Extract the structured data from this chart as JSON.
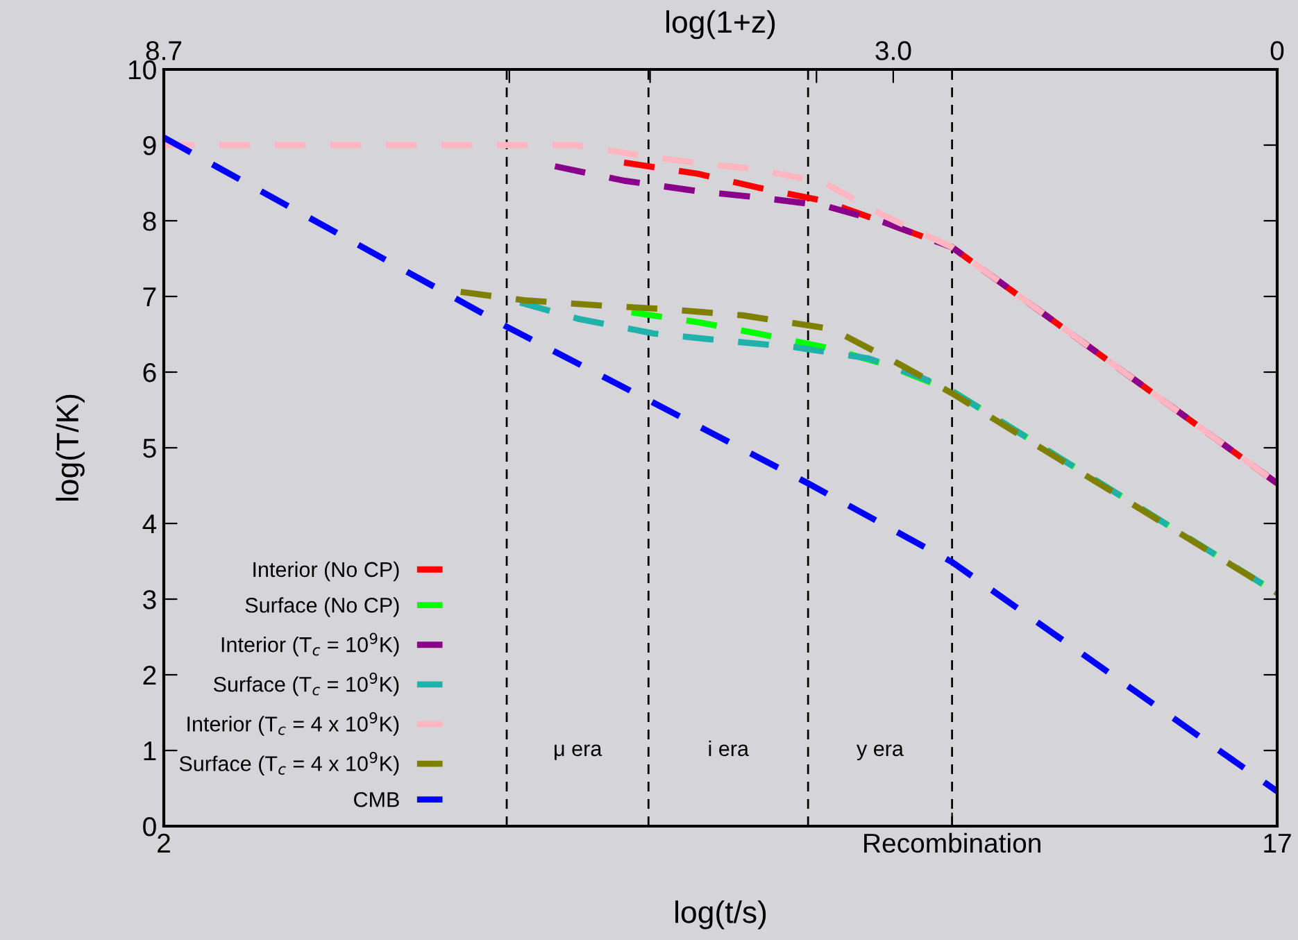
{
  "chart_data": {
    "type": "line",
    "xlabel": "log(t/s)",
    "ylabel": "log(T/K)",
    "x2label": "log(1+z)",
    "xlim": [
      2,
      17
    ],
    "xticks": [
      2,
      {
        "value": 12.62,
        "label": "Recombination"
      },
      17
    ],
    "x2lim": [
      8.7,
      0
    ],
    "x2ticks": [
      8.7,
      {
        "value": 6.0,
        "label": null
      },
      {
        "value": 4.9,
        "label": null
      },
      {
        "value": 3.6,
        "label": null
      },
      {
        "value": 3.0,
        "label": "3.0"
      },
      0
    ],
    "ylim": [
      0,
      10
    ],
    "yticks": [
      0,
      1,
      2,
      3,
      4,
      5,
      6,
      7,
      8,
      9,
      10
    ],
    "grid": false,
    "legend": "bottom left",
    "line_style": "dashed",
    "marker": "none",
    "series": [
      {
        "name": "Interior (No CP)",
        "color": "#ff0000",
        "x": [
          8.2,
          9.2,
          10.0,
          10.9,
          11.7,
          12.62,
          17
        ],
        "values": [
          8.77,
          8.62,
          8.44,
          8.26,
          7.98,
          7.65,
          4.53
        ]
      },
      {
        "name": "Surface (No CP)",
        "color": "#00ff00",
        "x": [
          8.3,
          9.2,
          10.0,
          10.9,
          11.7,
          12.62,
          17
        ],
        "values": [
          6.79,
          6.66,
          6.51,
          6.33,
          6.11,
          5.75,
          3.08
        ]
      },
      {
        "name": "Interior (T$_{c}$ = 10$^{9}$K)",
        "color": "#8b008b",
        "x": [
          7.27,
          8.2,
          9.2,
          10.0,
          10.9,
          11.7,
          12.62,
          17
        ],
        "values": [
          8.72,
          8.53,
          8.39,
          8.31,
          8.2,
          7.98,
          7.65,
          4.53
        ]
      },
      {
        "name": "Surface (T$_{c}$ = 10$^{9}$K)",
        "color": "#20b2aa",
        "x": [
          6.8,
          7.6,
          8.6,
          9.5,
          10.5,
          11.5,
          12.2,
          12.62,
          17
        ],
        "values": [
          6.92,
          6.7,
          6.51,
          6.42,
          6.33,
          6.18,
          5.93,
          5.75,
          3.08
        ]
      },
      {
        "name": "Interior (T$_{c}$ = 4 x 10$^{9}$K)",
        "color": "#ffb6c1",
        "x": [
          2,
          7.55,
          8.5,
          9.3,
          10.0,
          10.9,
          11.7,
          12.62,
          17
        ],
        "values": [
          9.0,
          9.0,
          8.85,
          8.75,
          8.68,
          8.5,
          8.07,
          7.65,
          4.53
        ]
      },
      {
        "name": "Surface (T$_{c}$ = 4 x 10$^{9}$K)",
        "color": "#808000",
        "x": [
          6.0,
          6.85,
          7.9,
          8.8,
          9.8,
          11.0,
          11.9,
          12.62,
          17
        ],
        "values": [
          7.06,
          6.95,
          6.88,
          6.83,
          6.75,
          6.57,
          6.11,
          5.72,
          3.08
        ]
      },
      {
        "name": "CMB",
        "color": "#0000ff",
        "x": [
          2,
          6.62,
          8.53,
          10.68,
          12.62,
          17
        ],
        "values": [
          9.1,
          6.6,
          5.63,
          4.53,
          3.49,
          0.46
        ]
      }
    ],
    "ref_lines": [
      {
        "axis": "x",
        "value": 6.62,
        "color": "#000000",
        "line_style": "dashed"
      },
      {
        "axis": "x",
        "value": 8.53,
        "color": "#000000",
        "line_style": "dashed"
      },
      {
        "axis": "x",
        "value": 10.68,
        "color": "#000000",
        "line_style": "dashed"
      },
      {
        "axis": "x",
        "value": 12.62,
        "color": "#000000",
        "line_style": "dashed"
      }
    ],
    "annotations": [
      "μ era",
      "i era",
      "y era"
    ]
  }
}
